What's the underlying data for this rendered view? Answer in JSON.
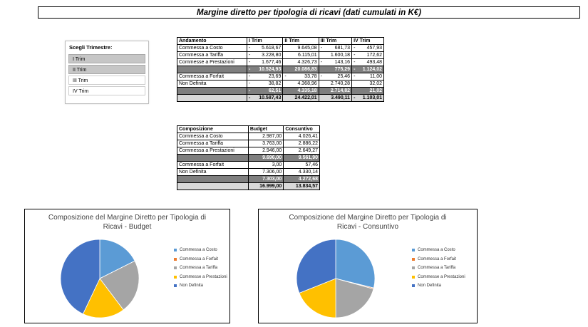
{
  "title": "Margine diretto per tipologia di ricavi (dati cumulati in K€)",
  "slicer": {
    "header": "Scegli Trimestre:",
    "items": [
      "I Trim",
      "II Trim",
      "III Trim",
      "IV Trim"
    ],
    "selected": [
      0,
      1
    ]
  },
  "andamento": {
    "headers": [
      "Andamento",
      "I Trim",
      "II Trim",
      "III Trim",
      "IV Trim"
    ],
    "rows": [
      {
        "label": "Commessa a Costo",
        "values": [
          [
            "-",
            "5.618,67"
          ],
          [
            "",
            "9.645,08"
          ],
          [
            "-",
            "681,73"
          ],
          [
            "-",
            "457,93"
          ]
        ]
      },
      {
        "label": "Commessa a Tariffa",
        "values": [
          [
            "-",
            "3.228,80"
          ],
          [
            "",
            "6.115,01"
          ],
          [
            "",
            "1.600,18"
          ],
          [
            "-",
            "172,62"
          ]
        ]
      },
      {
        "label": "Commesse a Prestazioni",
        "values": [
          [
            "-",
            "1.677,46"
          ],
          [
            "",
            "4.326,73"
          ],
          [
            "-",
            "143,16"
          ],
          [
            "-",
            "493,48"
          ]
        ]
      },
      {
        "label": "",
        "values": [
          [
            "-",
            "10.524,93"
          ],
          [
            "",
            "20.086,83"
          ],
          [
            "",
            "775,29"
          ],
          [
            "-",
            "1.124,02"
          ]
        ],
        "type": "sub"
      },
      {
        "label": "Commessa a Forfait",
        "values": [
          [
            "-",
            "23,69"
          ],
          [
            "-",
            "33,78"
          ],
          [
            "-",
            "25,46"
          ],
          [
            "-",
            "11,00"
          ]
        ]
      },
      {
        "label": "Non Definita",
        "values": [
          [
            "-",
            "38,82"
          ],
          [
            "",
            "4.368,96"
          ],
          [
            "",
            "2.740,28"
          ],
          [
            "",
            "32,02"
          ]
        ]
      },
      {
        "label": "",
        "values": [
          [
            "-",
            "62,51"
          ],
          [
            "",
            "4.335,18"
          ],
          [
            "",
            "2.714,82"
          ],
          [
            "",
            "21,02"
          ]
        ],
        "type": "sub"
      },
      {
        "label": "",
        "values": [
          [
            "-",
            "10.587,43"
          ],
          [
            "",
            "24.422,01"
          ],
          [
            "",
            "3.490,11"
          ],
          [
            "-",
            "1.103,01"
          ]
        ],
        "type": "tot"
      }
    ]
  },
  "composizione": {
    "headers": [
      "Composizione",
      "Budget",
      "Consuntivo"
    ],
    "rows": [
      {
        "label": "Commessa a Costo",
        "values": [
          "2.987,00",
          "4.026,41"
        ]
      },
      {
        "label": "Commessa a Tariffa",
        "values": [
          "3.763,00",
          "2.886,22"
        ]
      },
      {
        "label": "Commessa a Prestazioni",
        "values": [
          "2.946,00",
          "2.649,27"
        ]
      },
      {
        "label": "",
        "values": [
          "9.696,00",
          "9.561,90"
        ],
        "type": "sub"
      },
      {
        "label": "Commessa a Forfait",
        "values": [
          "3,00",
          "57,46"
        ]
      },
      {
        "label": "Non Definita",
        "values": [
          "7.306,00",
          "4.330,14"
        ]
      },
      {
        "label": "",
        "values": [
          "7.303,00",
          "4.272,68"
        ],
        "type": "sub"
      },
      {
        "label": "",
        "values": [
          "16.999,00",
          "13.834,57"
        ],
        "type": "tot"
      }
    ]
  },
  "colors": {
    "costo": "#5b9bd5",
    "forfait": "#ed7d31",
    "tariffa": "#a5a5a5",
    "prestazioni": "#ffc000",
    "non_definita": "#4472c4"
  },
  "chart_data": [
    {
      "type": "pie",
      "title": "Composizione del Margine Diretto per Tipologia di Ricavi - Budget",
      "title_lines": [
        "Composizione del Margine Diretto per Tipologia di",
        "Ricavi - Budget"
      ],
      "categories": [
        "Commessa a Costo",
        "Commessa a Forfait",
        "Commessa a Tariffa",
        "Commesse a Prestazioni",
        "Non Definita"
      ],
      "values": [
        2987.0,
        3.0,
        3763.0,
        2946.0,
        7306.0
      ],
      "legend": "right"
    },
    {
      "type": "pie",
      "title": "Composizione del Margine Diretto per Tipologia di Ricavi - Consuntivo",
      "title_lines": [
        "Composizione del Margine Diretto per Tipologia di",
        "Ricavi - Consuntivo"
      ],
      "categories": [
        "Commessa a Costo",
        "Commessa a Forfait",
        "Commessa a Tariffa",
        "Commesse a Prestazioni",
        "Non Definita"
      ],
      "values": [
        4026.41,
        57.46,
        2886.22,
        2649.27,
        4330.14
      ],
      "legend": "right"
    }
  ]
}
